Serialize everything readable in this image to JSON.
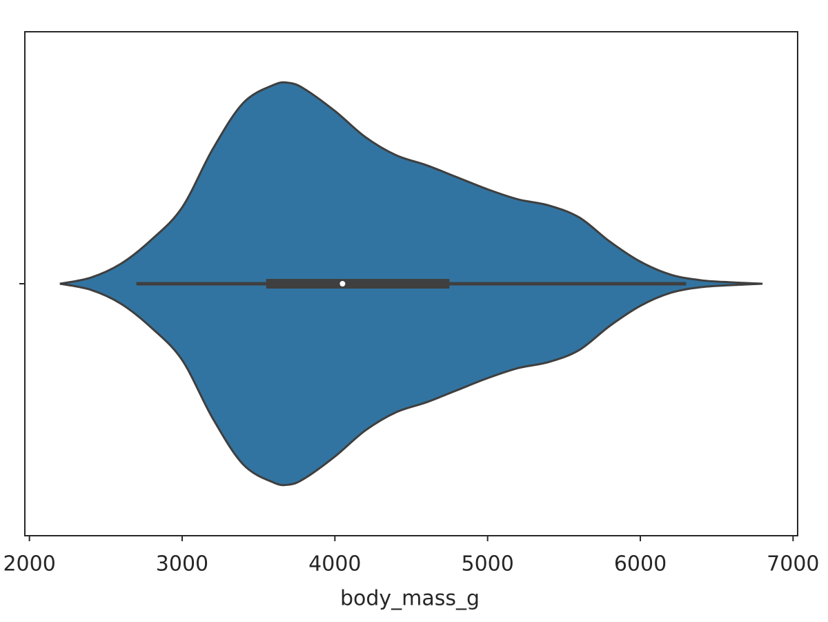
{
  "chart_data": {
    "type": "violin",
    "categories": [
      null
    ],
    "xlabel": "body_mass_g",
    "xlim": [
      1970,
      7030
    ],
    "xticks": [
      2000,
      3000,
      4000,
      5000,
      6000,
      7000
    ],
    "color": "#3274a1",
    "edge_color": "#3f3f3f",
    "kde_x": [
      2200,
      2400,
      2600,
      2800,
      3000,
      3200,
      3400,
      3600,
      3700,
      3800,
      4000,
      4200,
      4400,
      4600,
      4800,
      5000,
      5200,
      5400,
      5600,
      5800,
      6000,
      6200,
      6400,
      6600,
      6800
    ],
    "density": [
      0,
      0.03,
      0.1,
      0.22,
      0.38,
      0.67,
      0.9,
      0.99,
      1,
      0.97,
      0.86,
      0.73,
      0.64,
      0.59,
      0.53,
      0.47,
      0.42,
      0.39,
      0.33,
      0.21,
      0.11,
      0.045,
      0.017,
      0.007,
      0
    ],
    "box": {
      "whislo": 2700,
      "q1": 3550,
      "median": 4050,
      "q3": 4750,
      "whishi": 6300
    }
  }
}
